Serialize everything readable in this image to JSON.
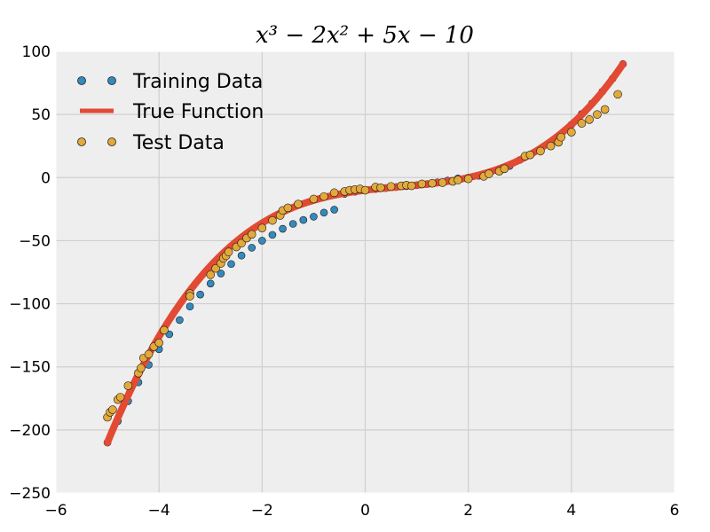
{
  "chart_data": {
    "type": "scatter",
    "title": "x³ − 2x² + 5x − 10",
    "xlabel": "",
    "ylabel": "",
    "xlim": [
      -6,
      6
    ],
    "ylim": [
      -250,
      100
    ],
    "xticks": [
      -6,
      -4,
      -2,
      0,
      2,
      4,
      6
    ],
    "yticks": [
      -250,
      -200,
      -150,
      -100,
      -50,
      0,
      50,
      100
    ],
    "xtick_labels": [
      "−6",
      "−4",
      "−2",
      "0",
      "2",
      "4",
      "6"
    ],
    "ytick_labels": [
      "−250",
      "−200",
      "−150",
      "−100",
      "−50",
      "0",
      "50",
      "100"
    ],
    "grid": true,
    "legend_position": "top-left",
    "series": [
      {
        "name": "Training Data",
        "kind": "scatter",
        "color": "#348abd",
        "x": [
          -5.0,
          -4.8,
          -4.6,
          -4.4,
          -4.2,
          -4.0,
          -3.8,
          -3.6,
          -3.4,
          -3.2,
          -3.0,
          -2.8,
          -2.6,
          -2.4,
          -2.2,
          -2.0,
          -1.8,
          -1.6,
          -1.4,
          -1.2,
          -1.0,
          -0.8,
          -0.6,
          -0.4,
          -0.2,
          0.0,
          0.2,
          0.4,
          0.6,
          0.8,
          1.0,
          1.2,
          1.4,
          1.6,
          1.8,
          2.0,
          2.2,
          2.4,
          2.6,
          2.8,
          3.0,
          3.2,
          3.4,
          3.6,
          3.8,
          4.0,
          4.2,
          4.4,
          4.6,
          4.8,
          5.0
        ],
        "y": [
          -210,
          -193.1,
          -177.2,
          -162.3,
          -148.4,
          -136,
          -124.2,
          -112.9,
          -102.2,
          -92.7,
          -84,
          -76.0,
          -68.5,
          -61.8,
          -55.6,
          -50,
          -45.4,
          -40.6,
          -36.7,
          -33.6,
          -31,
          -27.8,
          -25.4,
          -12.9,
          -11.2,
          -10,
          -9.1,
          -8.3,
          -7.5,
          -6.8,
          -6,
          -5.1,
          -3.8,
          -2.4,
          -0.6,
          0,
          1.5,
          3.5,
          6.0,
          9.2,
          14,
          17.8,
          22.4,
          27.8,
          34.1,
          42,
          50.4,
          58.8,
          68.2,
          78.5,
          90
        ]
      },
      {
        "name": "True Function",
        "kind": "line",
        "color": "#e24a33"
      },
      {
        "name": "Test Data",
        "kind": "scatter",
        "color": "#e2a93b",
        "x": [
          -5.0,
          -4.95,
          -4.9,
          -4.8,
          -4.75,
          -4.6,
          -4.4,
          -4.35,
          -4.3,
          -4.2,
          -4.1,
          -4.0,
          -3.9,
          -3.4,
          -3.4,
          -3.0,
          -2.9,
          -2.8,
          -2.75,
          -2.7,
          -2.65,
          -2.5,
          -2.4,
          -2.3,
          -2.2,
          -2.0,
          -1.8,
          -1.65,
          -1.6,
          -1.5,
          -1.3,
          -1.0,
          -0.8,
          -0.6,
          -0.4,
          -0.3,
          -0.2,
          -0.1,
          0.0,
          0.2,
          0.3,
          0.5,
          0.7,
          0.8,
          0.9,
          1.1,
          1.3,
          1.5,
          1.7,
          1.8,
          2.0,
          2.3,
          2.4,
          2.6,
          2.7,
          3.1,
          3.2,
          3.4,
          3.6,
          3.75,
          3.8,
          4.0,
          4.2,
          4.35,
          4.5,
          4.65,
          4.9
        ],
        "y": [
          -190,
          -186,
          -184,
          -176,
          -174,
          -165,
          -155,
          -151,
          -143,
          -140,
          -134,
          -131,
          -121,
          -92,
          -94,
          -77,
          -72,
          -68,
          -64,
          -62,
          -59,
          -55,
          -52,
          -48,
          -45,
          -40,
          -34,
          -30,
          -26,
          -24,
          -21,
          -17,
          -15,
          -12,
          -11,
          -10,
          -9.5,
          -9,
          -10,
          -7.5,
          -8,
          -7,
          -6.5,
          -6,
          -6.5,
          -5,
          -4.5,
          -4,
          -3,
          -2,
          -1,
          1,
          3,
          5,
          7,
          17,
          18,
          21,
          25,
          28,
          32,
          36,
          43,
          46,
          50,
          54,
          66
        ]
      }
    ]
  }
}
